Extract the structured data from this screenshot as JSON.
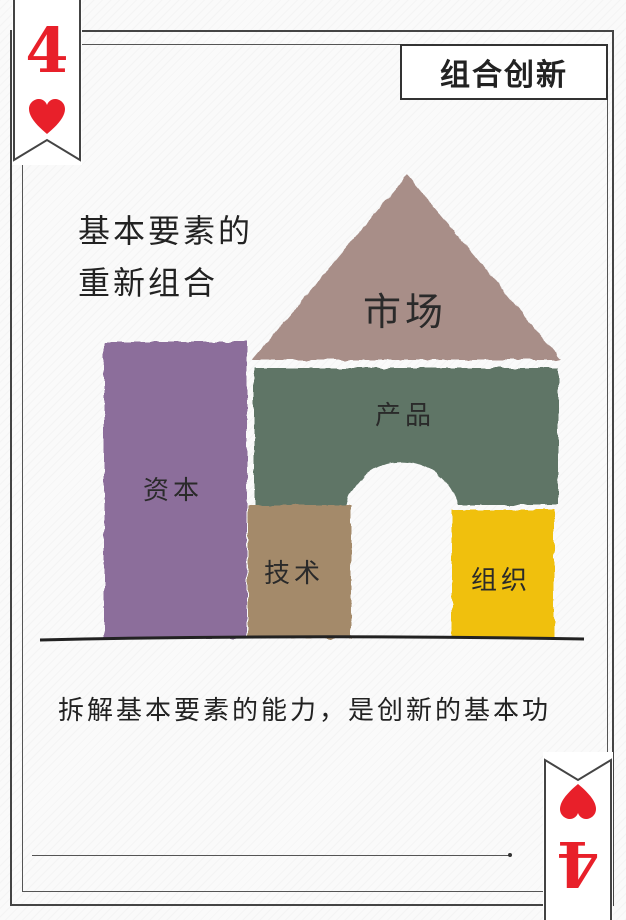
{
  "card": {
    "title": "组合创新",
    "rank": "4",
    "suit_icon": "heart-icon",
    "heading_line1": "基本要素的",
    "heading_line2": "重新组合",
    "caption": "拆解基本要素的能力，是创新的基本功"
  },
  "blocks": {
    "market": "市场",
    "product": "产品",
    "capital": "资本",
    "technology": "技术",
    "organization": "组织"
  },
  "colors": {
    "suit_red": "#e8202a",
    "market": "#a88e88",
    "product": "#5e7566",
    "capital": "#8c6e9b",
    "technology": "#a48a6a",
    "organization": "#f0c010"
  }
}
